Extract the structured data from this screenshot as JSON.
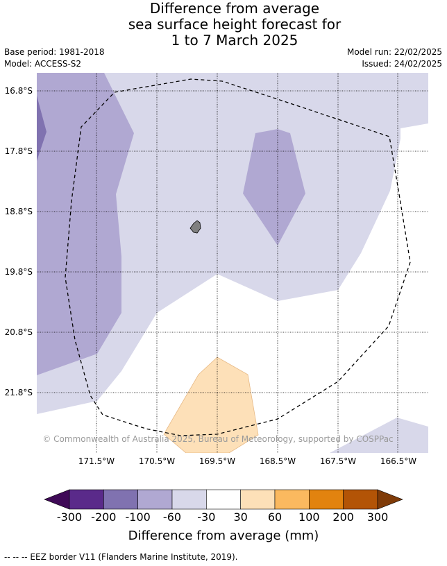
{
  "title": {
    "line1": "Difference from average",
    "line2": "sea surface height forecast for",
    "line3": "1 to 7 March 2025"
  },
  "meta": {
    "base_period": "Base period: 1981-2018",
    "model": "Model: ACCESS-S2",
    "model_run": "Model run: 22/02/2025",
    "issued": "Issued: 24/02/2025"
  },
  "map": {
    "lat_labels": [
      "16.8°S",
      "17.8°S",
      "18.8°S",
      "19.8°S",
      "20.8°S",
      "21.8°S"
    ],
    "lon_labels": [
      "171.5°W",
      "170.5°W",
      "169.5°W",
      "168.5°W",
      "167.5°W",
      "166.5°W"
    ],
    "copyright": "© Commonwealth of Australia 2025, Bureau of Meteorology, supported by COSPPac"
  },
  "colorbar": {
    "ticks": [
      "-300",
      "-200",
      "-100",
      "-60",
      "-30",
      "30",
      "60",
      "100",
      "200",
      "300"
    ],
    "title": "Difference from average (mm)",
    "colors": {
      "below_min": "#3f0a57",
      "bins": [
        "#5a2a8a",
        "#8072b0",
        "#b0a8d2",
        "#d8d8ea",
        "#ffffff",
        "#fde0b8",
        "#fbb95f",
        "#e2830f",
        "#b35406"
      ],
      "above_max": "#7f3b08"
    }
  },
  "colors": {
    "map_light_purple": "#d8d8ea",
    "map_mid_purple": "#b0a8d2",
    "map_dark_purple": "#8072b0",
    "map_light_orange": "#fde0b8",
    "land": "#808080"
  },
  "footnote": "--  --  -- EEZ border V11 (Flanders Marine Institute, 2019)."
}
